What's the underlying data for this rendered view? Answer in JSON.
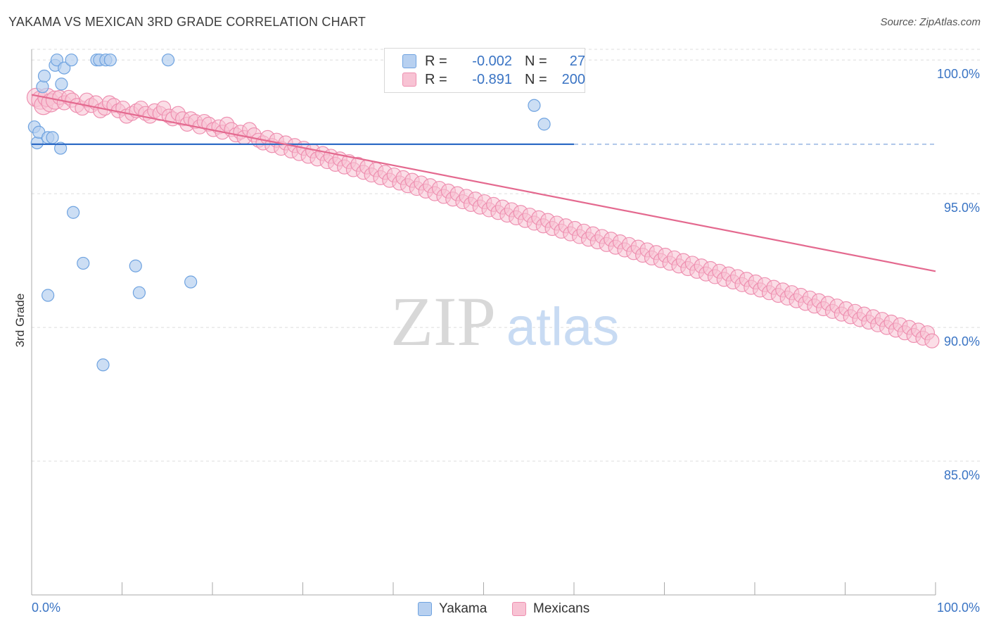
{
  "header": {
    "title": "YAKAMA VS MEXICAN 3RD GRADE CORRELATION CHART",
    "source": "Source: ZipAtlas.com"
  },
  "watermark": {
    "zip": "ZIP",
    "atlas": "atlas"
  },
  "legend": {
    "rows": [
      {
        "r_label": "R =",
        "r_value": "-0.002",
        "n_label": "N =",
        "n_value": "27",
        "color": "#6fa3e0"
      },
      {
        "r_label": "R =",
        "r_value": "-0.891",
        "n_label": "N =",
        "n_value": "200",
        "color": "#f08db0"
      }
    ]
  },
  "bottom_legend": {
    "series1": "Yakama",
    "series2": "Mexicans"
  },
  "colors": {
    "blue_fill": "#b7d0f0",
    "blue_stroke": "#6fa3e0",
    "blue_line": "#2f6cc6",
    "pink_fill": "#f8c3d4",
    "pink_stroke": "#ee8fb0",
    "pink_line": "#e4698f",
    "axis_label": "#3a74c4",
    "grid": "#dddddd"
  },
  "chart_data": {
    "type": "scatter",
    "title": "YAKAMA VS MEXICAN 3RD GRADE CORRELATION CHART",
    "xlabel": "",
    "ylabel": "3rd Grade",
    "xlim": [
      0,
      100
    ],
    "ylim": [
      80,
      100.4
    ],
    "x_tick_labels": [
      "0.0%",
      "100.0%"
    ],
    "y_ticks": [
      85,
      90,
      95,
      100
    ],
    "y_tick_labels": [
      "85.0%",
      "90.0%",
      "95.0%",
      "100.0%"
    ],
    "grid": "horizontal dashed",
    "series": [
      {
        "name": "Yakama",
        "trend": {
          "x0": 0,
          "y0": 96.85,
          "x1": 60,
          "y1": 96.85,
          "dashed_to": 100
        },
        "points": [
          [
            0.3,
            97.5
          ],
          [
            0.6,
            96.9
          ],
          [
            0.8,
            97.3
          ],
          [
            1.2,
            99.0
          ],
          [
            1.4,
            99.4
          ],
          [
            1.8,
            97.1
          ],
          [
            2.3,
            97.1
          ],
          [
            2.6,
            99.8
          ],
          [
            2.8,
            100.0
          ],
          [
            3.2,
            96.7
          ],
          [
            3.3,
            99.1
          ],
          [
            3.6,
            99.7
          ],
          [
            4.4,
            100.0
          ],
          [
            4.6,
            94.3
          ],
          [
            5.7,
            92.4
          ],
          [
            7.2,
            100.0
          ],
          [
            7.5,
            100.0
          ],
          [
            8.2,
            100.0
          ],
          [
            8.7,
            100.0
          ],
          [
            1.8,
            91.2
          ],
          [
            7.9,
            88.6
          ],
          [
            11.5,
            92.3
          ],
          [
            11.9,
            91.3
          ],
          [
            15.1,
            100.0
          ],
          [
            17.6,
            91.7
          ],
          [
            55.6,
            98.3
          ],
          [
            56.7,
            97.6
          ]
        ]
      },
      {
        "name": "Mexicans",
        "trend": {
          "x0": 0,
          "y0": 98.7,
          "x1": 100,
          "y1": 92.1
        },
        "points": [
          [
            0.5,
            98.6
          ],
          [
            1.0,
            98.5
          ],
          [
            1.3,
            98.3
          ],
          [
            1.7,
            98.6
          ],
          [
            2.1,
            98.4
          ],
          [
            2.6,
            98.5
          ],
          [
            3.1,
            98.6
          ],
          [
            3.6,
            98.4
          ],
          [
            4.1,
            98.6
          ],
          [
            4.5,
            98.5
          ],
          [
            5.0,
            98.3
          ],
          [
            5.6,
            98.2
          ],
          [
            6.1,
            98.5
          ],
          [
            6.6,
            98.3
          ],
          [
            7.1,
            98.4
          ],
          [
            7.6,
            98.1
          ],
          [
            8.1,
            98.2
          ],
          [
            8.6,
            98.4
          ],
          [
            9.1,
            98.3
          ],
          [
            9.6,
            98.1
          ],
          [
            10.1,
            98.2
          ],
          [
            10.5,
            97.9
          ],
          [
            11.1,
            98.0
          ],
          [
            11.6,
            98.1
          ],
          [
            12.1,
            98.2
          ],
          [
            12.6,
            98.0
          ],
          [
            13.1,
            97.9
          ],
          [
            13.6,
            98.1
          ],
          [
            14.2,
            98.0
          ],
          [
            14.6,
            98.2
          ],
          [
            15.2,
            97.9
          ],
          [
            15.6,
            97.8
          ],
          [
            16.2,
            98.0
          ],
          [
            16.7,
            97.8
          ],
          [
            17.2,
            97.6
          ],
          [
            17.6,
            97.8
          ],
          [
            18.1,
            97.7
          ],
          [
            18.6,
            97.5
          ],
          [
            19.1,
            97.7
          ],
          [
            19.6,
            97.6
          ],
          [
            20.1,
            97.4
          ],
          [
            20.7,
            97.5
          ],
          [
            21.1,
            97.3
          ],
          [
            21.6,
            97.6
          ],
          [
            22.1,
            97.4
          ],
          [
            22.6,
            97.2
          ],
          [
            23.1,
            97.3
          ],
          [
            23.5,
            97.1
          ],
          [
            24.1,
            97.4
          ],
          [
            24.6,
            97.2
          ],
          [
            25.1,
            97.0
          ],
          [
            25.6,
            96.9
          ],
          [
            26.1,
            97.1
          ],
          [
            26.6,
            96.8
          ],
          [
            27.1,
            97.0
          ],
          [
            27.6,
            96.7
          ],
          [
            28.1,
            96.9
          ],
          [
            28.7,
            96.6
          ],
          [
            29.1,
            96.8
          ],
          [
            29.6,
            96.5
          ],
          [
            30.1,
            96.7
          ],
          [
            30.6,
            96.4
          ],
          [
            31.1,
            96.6
          ],
          [
            31.6,
            96.3
          ],
          [
            32.2,
            96.5
          ],
          [
            32.7,
            96.2
          ],
          [
            33.1,
            96.4
          ],
          [
            33.6,
            96.1
          ],
          [
            34.1,
            96.3
          ],
          [
            34.6,
            96.0
          ],
          [
            35.1,
            96.2
          ],
          [
            35.6,
            95.9
          ],
          [
            36.1,
            96.1
          ],
          [
            36.7,
            95.8
          ],
          [
            37.1,
            96.0
          ],
          [
            37.6,
            95.7
          ],
          [
            38.1,
            95.9
          ],
          [
            38.6,
            95.6
          ],
          [
            39.1,
            95.8
          ],
          [
            39.6,
            95.5
          ],
          [
            40.1,
            95.7
          ],
          [
            40.7,
            95.4
          ],
          [
            41.1,
            95.6
          ],
          [
            41.6,
            95.3
          ],
          [
            42.1,
            95.5
          ],
          [
            42.6,
            95.2
          ],
          [
            43.1,
            95.4
          ],
          [
            43.6,
            95.1
          ],
          [
            44.1,
            95.3
          ],
          [
            44.6,
            95.0
          ],
          [
            45.1,
            95.2
          ],
          [
            45.6,
            94.9
          ],
          [
            46.1,
            95.1
          ],
          [
            46.6,
            94.8
          ],
          [
            47.1,
            95.0
          ],
          [
            47.7,
            94.7
          ],
          [
            48.1,
            94.9
          ],
          [
            48.6,
            94.6
          ],
          [
            49.1,
            94.8
          ],
          [
            49.6,
            94.5
          ],
          [
            50.1,
            94.7
          ],
          [
            50.6,
            94.4
          ],
          [
            51.1,
            94.6
          ],
          [
            51.6,
            94.3
          ],
          [
            52.1,
            94.5
          ],
          [
            52.6,
            94.2
          ],
          [
            53.1,
            94.4
          ],
          [
            53.6,
            94.1
          ],
          [
            54.1,
            94.3
          ],
          [
            54.6,
            94.0
          ],
          [
            55.1,
            94.2
          ],
          [
            55.6,
            93.9
          ],
          [
            56.1,
            94.1
          ],
          [
            56.6,
            93.8
          ],
          [
            57.1,
            94.0
          ],
          [
            57.6,
            93.7
          ],
          [
            58.1,
            93.9
          ],
          [
            58.6,
            93.6
          ],
          [
            59.1,
            93.8
          ],
          [
            59.6,
            93.5
          ],
          [
            60.1,
            93.7
          ],
          [
            60.6,
            93.4
          ],
          [
            61.1,
            93.6
          ],
          [
            61.6,
            93.3
          ],
          [
            62.1,
            93.5
          ],
          [
            62.6,
            93.2
          ],
          [
            63.1,
            93.4
          ],
          [
            63.6,
            93.1
          ],
          [
            64.1,
            93.3
          ],
          [
            64.6,
            93.0
          ],
          [
            65.1,
            93.2
          ],
          [
            65.6,
            92.9
          ],
          [
            66.1,
            93.1
          ],
          [
            66.6,
            92.8
          ],
          [
            67.1,
            93.0
          ],
          [
            67.6,
            92.7
          ],
          [
            68.1,
            92.9
          ],
          [
            68.6,
            92.6
          ],
          [
            69.1,
            92.8
          ],
          [
            69.6,
            92.5
          ],
          [
            70.1,
            92.7
          ],
          [
            70.6,
            92.4
          ],
          [
            71.1,
            92.6
          ],
          [
            71.6,
            92.3
          ],
          [
            72.1,
            92.5
          ],
          [
            72.6,
            92.2
          ],
          [
            73.1,
            92.4
          ],
          [
            73.6,
            92.1
          ],
          [
            74.1,
            92.3
          ],
          [
            74.6,
            92.0
          ],
          [
            75.1,
            92.2
          ],
          [
            75.6,
            91.9
          ],
          [
            76.1,
            92.1
          ],
          [
            76.6,
            91.8
          ],
          [
            77.1,
            92.0
          ],
          [
            77.6,
            91.7
          ],
          [
            78.1,
            91.9
          ],
          [
            78.6,
            91.6
          ],
          [
            79.1,
            91.8
          ],
          [
            79.6,
            91.5
          ],
          [
            80.1,
            91.7
          ],
          [
            80.6,
            91.4
          ],
          [
            81.1,
            91.6
          ],
          [
            81.6,
            91.3
          ],
          [
            82.1,
            91.5
          ],
          [
            82.6,
            91.2
          ],
          [
            83.1,
            91.4
          ],
          [
            83.6,
            91.1
          ],
          [
            84.1,
            91.3
          ],
          [
            84.6,
            91.0
          ],
          [
            85.1,
            91.2
          ],
          [
            85.6,
            90.9
          ],
          [
            86.1,
            91.1
          ],
          [
            86.6,
            90.8
          ],
          [
            87.1,
            91.0
          ],
          [
            87.6,
            90.7
          ],
          [
            88.1,
            90.9
          ],
          [
            88.6,
            90.6
          ],
          [
            89.1,
            90.8
          ],
          [
            89.6,
            90.5
          ],
          [
            90.1,
            90.7
          ],
          [
            90.6,
            90.4
          ],
          [
            91.1,
            90.6
          ],
          [
            91.6,
            90.3
          ],
          [
            92.1,
            90.5
          ],
          [
            92.6,
            90.2
          ],
          [
            93.1,
            90.4
          ],
          [
            93.6,
            90.1
          ],
          [
            94.1,
            90.3
          ],
          [
            94.6,
            90.0
          ],
          [
            95.1,
            90.2
          ],
          [
            95.6,
            89.9
          ],
          [
            96.1,
            90.1
          ],
          [
            96.6,
            89.8
          ],
          [
            97.1,
            90.0
          ],
          [
            97.6,
            89.7
          ],
          [
            98.1,
            89.9
          ],
          [
            98.6,
            89.6
          ],
          [
            99.1,
            89.8
          ],
          [
            99.6,
            89.5
          ]
        ]
      }
    ]
  }
}
